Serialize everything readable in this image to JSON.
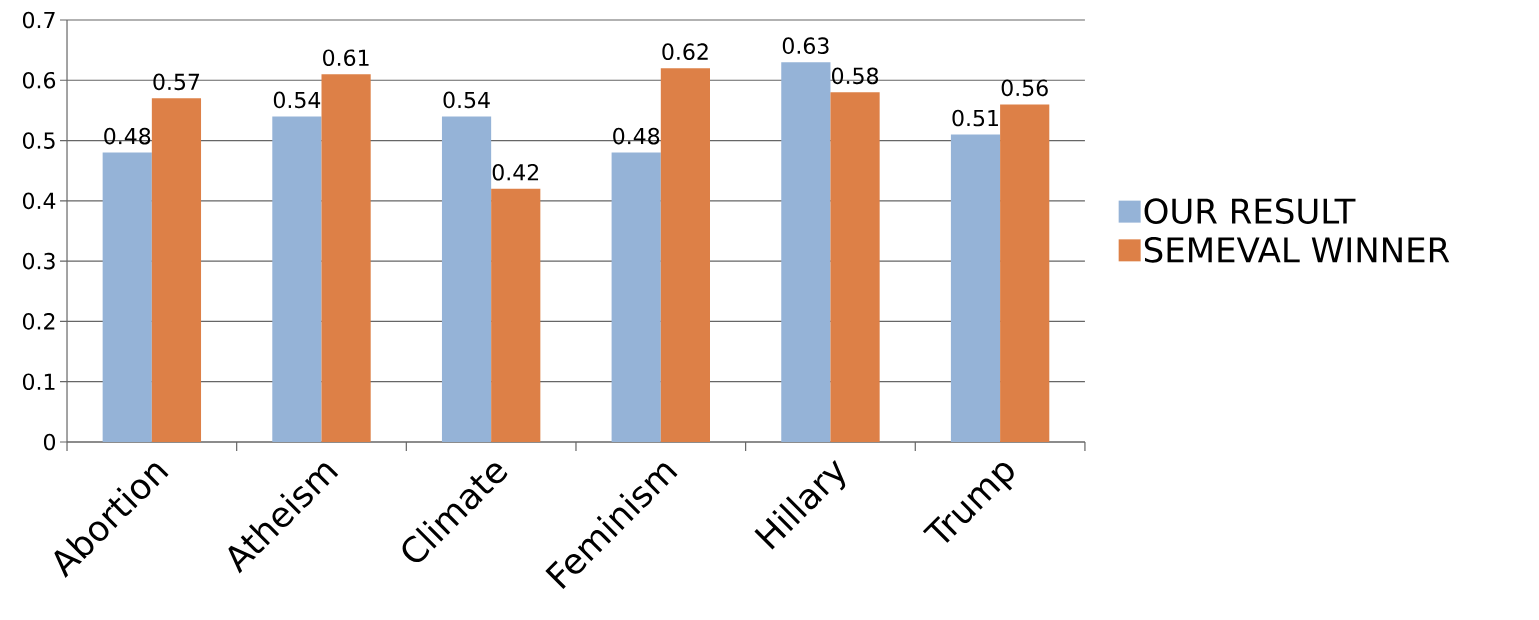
{
  "chart_data": {
    "type": "bar",
    "categories": [
      "Abortion",
      "Atheism",
      "Climate",
      "Feminism",
      "Hillary",
      "Trump"
    ],
    "series": [
      {
        "name": "OUR RESULT",
        "color": "#95b3d7",
        "values": [
          0.48,
          0.54,
          0.54,
          0.48,
          0.63,
          0.51
        ]
      },
      {
        "name": "SEMEVAL WINNER",
        "color": "#dd8047",
        "values": [
          0.57,
          0.61,
          0.42,
          0.62,
          0.58,
          0.56
        ]
      }
    ],
    "ylim": [
      0,
      0.7
    ],
    "yticks": [
      0,
      0.1,
      0.2,
      0.3,
      0.4,
      0.5,
      0.6,
      0.7
    ],
    "grid": "y",
    "legend": "right",
    "data_labels": true
  }
}
